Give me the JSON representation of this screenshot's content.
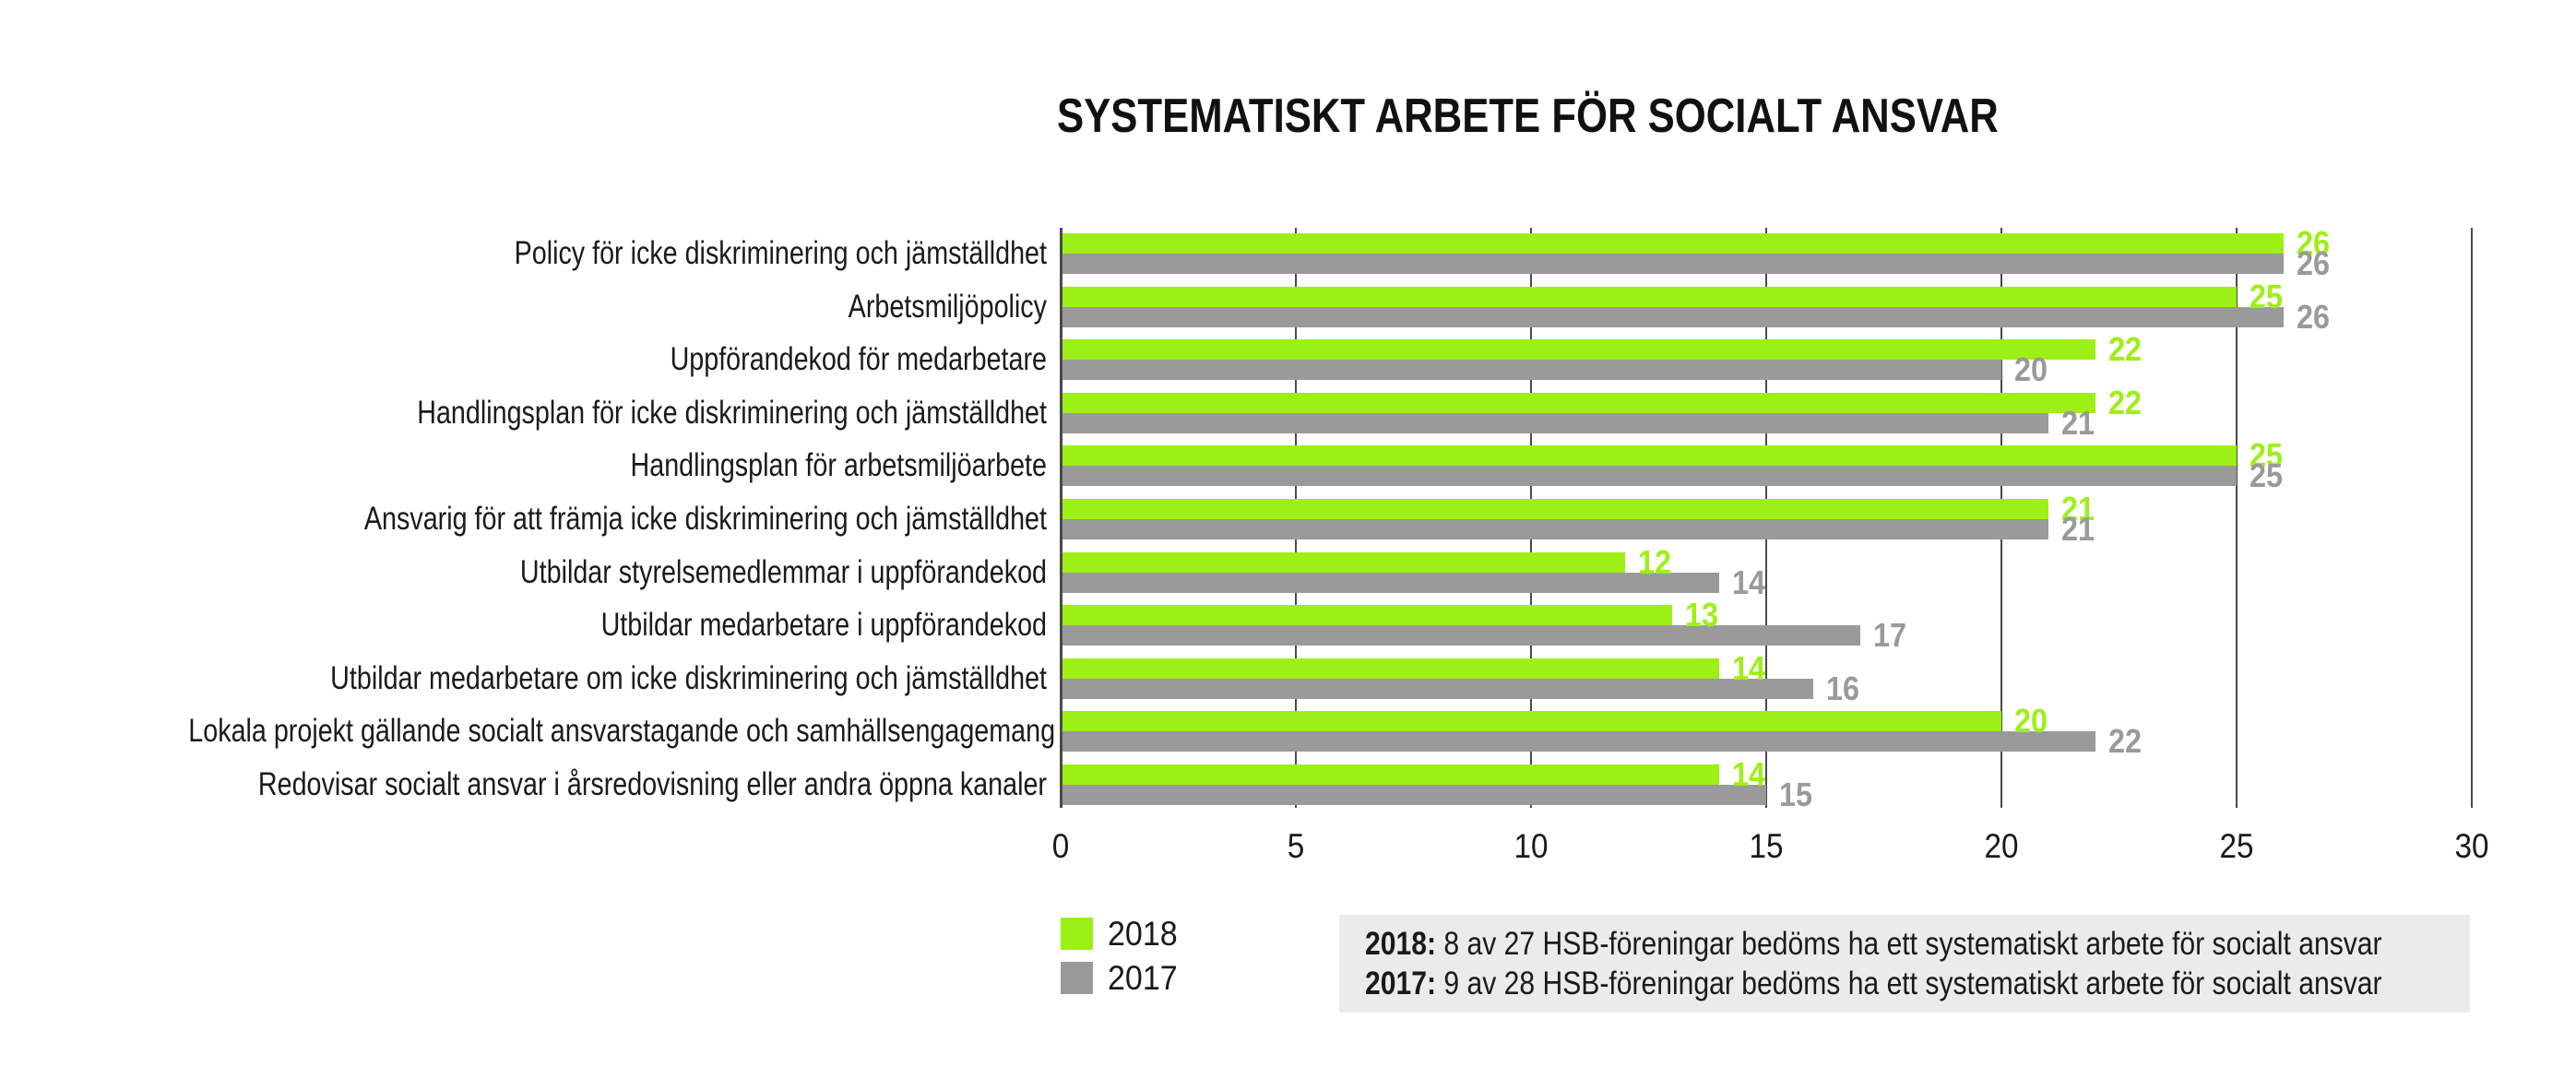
{
  "chart_data": {
    "type": "bar",
    "orientation": "horizontal",
    "title": "SYSTEMATISKT ARBETE FÖR SOCIALT ANSVAR",
    "categories": [
      "Policy för icke diskriminering och jämställdhet",
      "Arbetsmiljöpolicy",
      "Uppförandekod för medarbetare",
      "Handlingsplan för icke diskriminering och jämställdhet",
      "Handlingsplan för arbetsmiljöarbete",
      "Ansvarig för att främja icke diskriminering och jämställdhet",
      "Utbildar styrelsemedlemmar i uppförandekod",
      "Utbildar medarbetare i uppförandekod",
      "Utbildar medarbetare om icke diskriminering och jämställdhet",
      "Lokala projekt gällande socialt ansvarstagande och samhällsengagemang",
      "Redovisar socialt ansvar i årsredovisning eller andra öppna kanaler"
    ],
    "series": [
      {
        "name": "2018",
        "color": "#9DF016",
        "values": [
          26,
          25,
          22,
          22,
          25,
          21,
          12,
          13,
          14,
          20,
          14
        ]
      },
      {
        "name": "2017",
        "color": "#9A9A9A",
        "values": [
          26,
          26,
          20,
          21,
          25,
          21,
          14,
          17,
          16,
          22,
          15
        ]
      }
    ],
    "xlim": [
      0,
      30
    ],
    "xticks": [
      0,
      5,
      10,
      15,
      20,
      25,
      30
    ],
    "grid": true,
    "value_labels": true,
    "legend_position": "bottom-left",
    "colors": {
      "axis_line": "#4a4a4a",
      "text": "#1a1a1a"
    }
  },
  "note": {
    "background": "#EBEBEB",
    "lines": [
      {
        "label": "2018:",
        "text": " 8 av 27 HSB-föreningar bedöms ha ett systematiskt arbete för socialt ansvar"
      },
      {
        "label": "2017:",
        "text": " 9 av 28 HSB-föreningar bedöms ha ett systematiskt arbete för socialt ansvar"
      }
    ]
  }
}
